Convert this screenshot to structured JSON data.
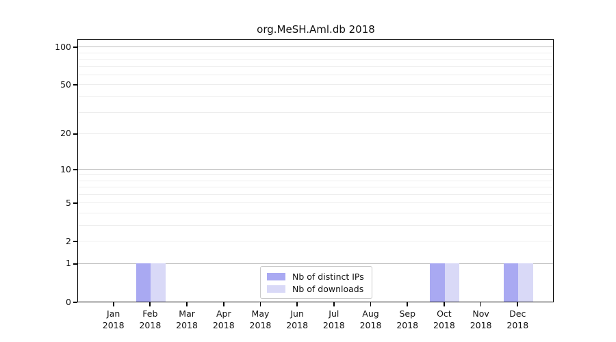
{
  "chart_data": {
    "type": "bar",
    "title": "org.MeSH.Aml.db 2018",
    "x_axis": {
      "months": [
        "Jan",
        "Feb",
        "Mar",
        "Apr",
        "May",
        "Jun",
        "Jul",
        "Aug",
        "Sep",
        "Oct",
        "Nov",
        "Dec"
      ],
      "year": "2018"
    },
    "series": [
      {
        "name": "Nb of distinct IPs",
        "color": "#a9a9f2",
        "values": [
          0,
          1,
          0,
          0,
          0,
          0,
          0,
          0,
          0,
          1,
          0,
          1
        ]
      },
      {
        "name": "Nb of downloads",
        "color": "#d9d9f7",
        "values": [
          0,
          1,
          0,
          0,
          0,
          0,
          0,
          0,
          0,
          1,
          0,
          1
        ]
      }
    ],
    "y_axis": {
      "scale": "log1p",
      "labeled_ticks": [
        0,
        1,
        2,
        5,
        10,
        20,
        50,
        100
      ],
      "minor_ticks": [
        3,
        4,
        6,
        7,
        8,
        9,
        30,
        40,
        60,
        70,
        80,
        90
      ],
      "emphasized_gridlines": [
        1,
        10,
        100
      ],
      "top_value": 100,
      "ylim_bottom": 0
    },
    "legend": {
      "position": "bottom-center",
      "entries": [
        "Nb of distinct IPs",
        "Nb of downloads"
      ]
    },
    "colors": {
      "grid_major": "#bdbdbd",
      "grid_minor": "#ededed",
      "axis": "#000000",
      "text": "#111111",
      "legend_border": "#c9c9c9"
    }
  }
}
